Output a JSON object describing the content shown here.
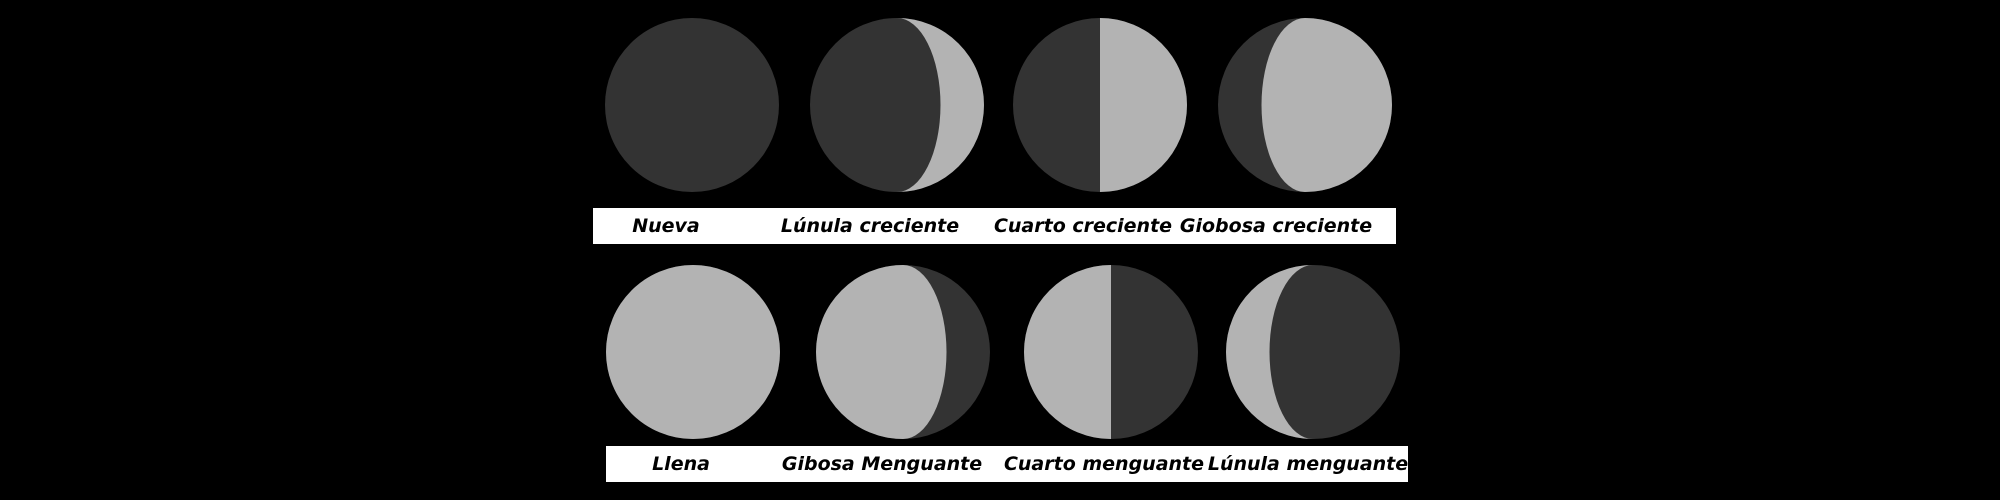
{
  "colors": {
    "background": "#000000",
    "dark_side": "#333333",
    "lit_side": "#b3b3b3",
    "label_bar": "#ffffff",
    "label_text": "#000000"
  },
  "rows": [
    {
      "phases": [
        {
          "label": "Nueva",
          "illumination": 0.0,
          "lit_side": "right"
        },
        {
          "label": "Lúnula creciente",
          "illumination": 0.25,
          "lit_side": "right"
        },
        {
          "label": "Cuarto creciente",
          "illumination": 0.5,
          "lit_side": "right"
        },
        {
          "label": "Giobosa creciente",
          "illumination": 0.75,
          "lit_side": "right"
        }
      ]
    },
    {
      "phases": [
        {
          "label": "Llena",
          "illumination": 1.0,
          "lit_side": "left"
        },
        {
          "label": "Gibosa Menguante",
          "illumination": 0.75,
          "lit_side": "left"
        },
        {
          "label": "Cuarto menguante",
          "illumination": 0.5,
          "lit_side": "left"
        },
        {
          "label": "Lúnula menguante",
          "illumination": 0.25,
          "lit_side": "left"
        }
      ]
    }
  ]
}
